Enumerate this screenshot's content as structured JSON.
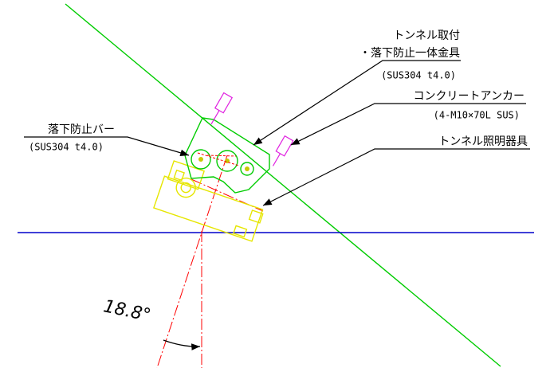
{
  "labels": {
    "mount": {
      "line1": "トンネル取付",
      "line2": "・落下防止一体金具",
      "spec": "(SUS304 t4.0)"
    },
    "anchor": {
      "line1": "コンクリートアンカー",
      "spec": "(4-M10×70L SUS)"
    },
    "fixture": {
      "line1": "トンネル照明器具"
    },
    "bar": {
      "line1": "落下防止バー",
      "spec": "(SUS304 t4.0)"
    },
    "angle": "18.8°"
  }
}
